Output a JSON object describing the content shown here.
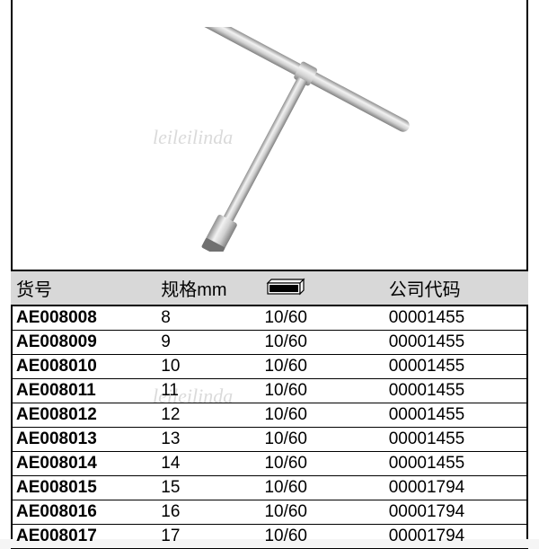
{
  "watermark_text": "leileilinda",
  "watermark_color": "rgba(150,150,150,0.35)",
  "frame_border_color": "#000000",
  "header_bg": "#d8d8d8",
  "tool_color": "#c8c8c8",
  "tool_highlight": "#f0f0f0",
  "tool_shadow": "#909090",
  "columns": [
    {
      "key": "code",
      "label": "货号",
      "width": "28%"
    },
    {
      "key": "spec",
      "label": "规格mm",
      "width": "20%"
    },
    {
      "key": "pack",
      "label": "",
      "icon": "box-icon",
      "width": "24%"
    },
    {
      "key": "company",
      "label": "公司代码",
      "width": "28%"
    }
  ],
  "rows": [
    {
      "code": "AE008008",
      "spec": "8",
      "pack": "10/60",
      "company": "00001455"
    },
    {
      "code": "AE008009",
      "spec": "9",
      "pack": "10/60",
      "company": "00001455"
    },
    {
      "code": "AE008010",
      "spec": "10",
      "pack": "10/60",
      "company": "00001455"
    },
    {
      "code": "AE008011",
      "spec": "11",
      "pack": "10/60",
      "company": "00001455"
    },
    {
      "code": "AE008012",
      "spec": "12",
      "pack": "10/60",
      "company": "00001455"
    },
    {
      "code": "AE008013",
      "spec": "13",
      "pack": "10/60",
      "company": "00001455"
    },
    {
      "code": "AE008014",
      "spec": "14",
      "pack": "10/60",
      "company": "00001455"
    },
    {
      "code": "AE008015",
      "spec": "15",
      "pack": "10/60",
      "company": "00001794"
    },
    {
      "code": "AE008016",
      "spec": "16",
      "pack": "10/60",
      "company": "00001794"
    },
    {
      "code": "AE008017",
      "spec": "17",
      "pack": "10/60",
      "company": "00001794"
    }
  ]
}
